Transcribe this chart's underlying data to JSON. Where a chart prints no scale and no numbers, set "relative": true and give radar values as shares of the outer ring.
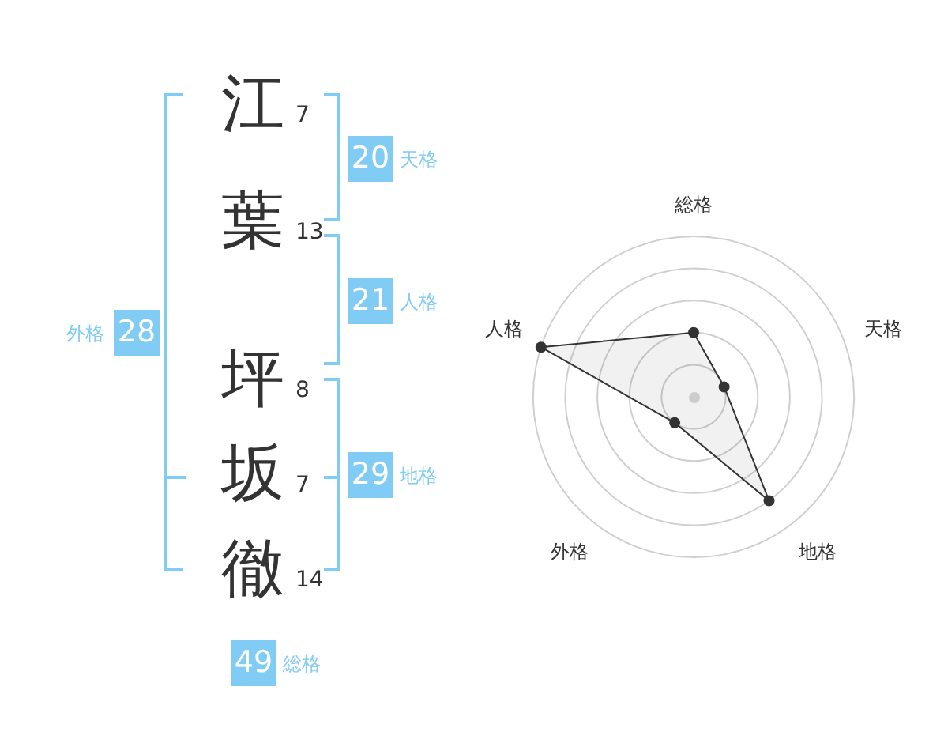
{
  "chart_data": [
    {
      "type": "other",
      "color": "#80ccf5",
      "categories": [
        "江",
        "葉",
        "坪",
        "坂",
        "徹"
      ],
      "values": [
        7,
        13,
        8,
        7,
        14
      ],
      "data_labels": true,
      "annotations": [
        "20",
        "天格",
        "21",
        "人格",
        "28",
        "外格",
        "29",
        "地格",
        "49",
        "総格"
      ]
    },
    {
      "type": "radar",
      "categories": [
        "総格",
        "天格",
        "地格",
        "外格",
        "人格"
      ],
      "relative": true,
      "grid": true,
      "marker": "circle",
      "series": [
        {
          "color": "#333333",
          "values": [
            0.4,
            0.2,
            0.8,
            0.2,
            1
          ]
        }
      ]
    }
  ]
}
